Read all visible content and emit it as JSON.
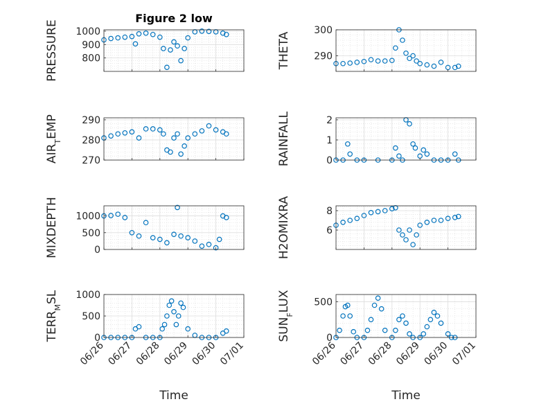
{
  "chart_data": [
    {
      "type": "scatter",
      "title": "Figure 2 low",
      "ylabel": "PRESSURE",
      "xlim": [
        "06/26",
        "07/01"
      ],
      "ylim": [
        700,
        1010
      ],
      "yticks": [
        800,
        900,
        1000
      ],
      "yticklabels": [
        "800",
        "900",
        "1000"
      ],
      "xticklabels": [],
      "grid": true,
      "color": "#0072BD",
      "series": [
        {
          "x": [
            "06/26 00:00",
            "06/26 06:00",
            "06/26 12:00",
            "06/26 18:00",
            "06/27 00:00",
            "06/27 03:00",
            "06/27 06:00",
            "06/27 12:00",
            "06/27 18:00",
            "06/28 00:00",
            "06/28 03:00",
            "06/28 06:00",
            "06/28 09:00",
            "06/28 12:00",
            "06/28 15:00",
            "06/28 18:00",
            "06/28 21:00",
            "06/29 00:00",
            "06/29 06:00",
            "06/29 12:00",
            "06/29 18:00",
            "06/30 00:00",
            "06/30 06:00",
            "06/30 09:00"
          ],
          "y": [
            935,
            945,
            950,
            955,
            960,
            905,
            980,
            985,
            975,
            955,
            870,
            730,
            860,
            920,
            890,
            780,
            870,
            950,
            995,
            1000,
            998,
            995,
            985,
            975
          ]
        }
      ]
    },
    {
      "type": "scatter",
      "ylabel": "THETA",
      "xlim": [
        "06/26",
        "07/01"
      ],
      "ylim": [
        284,
        300
      ],
      "yticks": [
        290,
        300
      ],
      "yticklabels": [
        "290",
        "300"
      ],
      "xticklabels": [],
      "grid": true,
      "color": "#0072BD",
      "series": [
        {
          "x": [
            "06/26 00:00",
            "06/26 06:00",
            "06/26 12:00",
            "06/26 18:00",
            "06/27 00:00",
            "06/27 06:00",
            "06/27 12:00",
            "06/27 18:00",
            "06/28 00:00",
            "06/28 03:00",
            "06/28 06:00",
            "06/28 09:00",
            "06/28 12:00",
            "06/28 15:00",
            "06/28 18:00",
            "06/28 21:00",
            "06/29 00:00",
            "06/29 06:00",
            "06/29 12:00",
            "06/29 18:00",
            "06/30 00:00",
            "06/30 06:00",
            "06/30 09:00"
          ],
          "y": [
            287,
            287,
            287.2,
            287.5,
            287.8,
            288.5,
            288,
            288,
            288.2,
            293,
            300,
            296,
            291,
            289,
            290,
            288,
            287,
            286.5,
            286,
            287.5,
            285.5,
            285.5,
            286
          ]
        }
      ]
    },
    {
      "type": "scatter",
      "ylabel": "AIR_TEMP",
      "xlim": [
        "06/26",
        "07/01"
      ],
      "ylim": [
        270,
        291
      ],
      "yticks": [
        270,
        280,
        290
      ],
      "yticklabels": [
        "270",
        "280",
        "290"
      ],
      "xticklabels": [],
      "grid": true,
      "color": "#0072BD",
      "series": [
        {
          "x": [
            "06/26 00:00",
            "06/26 06:00",
            "06/26 12:00",
            "06/26 18:00",
            "06/27 00:00",
            "06/27 06:00",
            "06/27 12:00",
            "06/27 18:00",
            "06/28 00:00",
            "06/28 03:00",
            "06/28 06:00",
            "06/28 09:00",
            "06/28 12:00",
            "06/28 15:00",
            "06/28 18:00",
            "06/28 21:00",
            "06/29 00:00",
            "06/29 06:00",
            "06/29 12:00",
            "06/29 18:00",
            "06/30 00:00",
            "06/30 06:00",
            "06/30 09:00"
          ],
          "y": [
            281,
            282,
            283,
            283.5,
            284,
            281,
            285.5,
            285.5,
            285,
            283,
            275,
            274,
            281,
            283,
            273,
            277,
            281,
            283,
            284.5,
            287,
            285,
            284,
            283
          ]
        }
      ]
    },
    {
      "type": "scatter",
      "ylabel": "RAINFALL",
      "xlim": [
        "06/26",
        "07/01"
      ],
      "ylim": [
        0,
        2.1
      ],
      "yticks": [
        0,
        1,
        2
      ],
      "yticklabels": [
        "0",
        "1",
        "2"
      ],
      "xticklabels": [],
      "grid": true,
      "color": "#0072BD",
      "series": [
        {
          "x": [
            "06/26 00:00",
            "06/26 06:00",
            "06/26 10:00",
            "06/26 12:00",
            "06/26 18:00",
            "06/27 00:00",
            "06/27 12:00",
            "06/28 00:00",
            "06/28 03:00",
            "06/28 06:00",
            "06/28 09:00",
            "06/28 12:00",
            "06/28 15:00",
            "06/28 18:00",
            "06/28 20:00",
            "06/29 00:00",
            "06/29 03:00",
            "06/29 06:00",
            "06/29 12:00",
            "06/29 18:00",
            "06/30 00:00",
            "06/30 06:00",
            "06/30 09:00"
          ],
          "y": [
            0,
            0,
            0.8,
            0.3,
            0,
            0,
            0,
            0,
            0.6,
            0.2,
            0,
            2,
            1.8,
            0.8,
            0.6,
            0.2,
            0.5,
            0.3,
            0,
            0,
            0,
            0.3,
            0
          ]
        }
      ]
    },
    {
      "type": "scatter",
      "ylabel": "MIXDEPTH",
      "xlim": [
        "06/26",
        "07/01"
      ],
      "ylim": [
        0,
        1300
      ],
      "yticks": [
        0,
        500,
        1000
      ],
      "yticklabels": [
        "0",
        "500",
        "1000"
      ],
      "xticklabels": [],
      "grid": true,
      "color": "#0072BD",
      "series": [
        {
          "x": [
            "06/26 00:00",
            "06/26 06:00",
            "06/26 12:00",
            "06/26 18:00",
            "06/27 00:00",
            "06/27 06:00",
            "06/27 12:00",
            "06/27 18:00",
            "06/28 00:00",
            "06/28 06:00",
            "06/28 12:00",
            "06/28 15:00",
            "06/28 18:00",
            "06/29 00:00",
            "06/29 06:00",
            "06/29 12:00",
            "06/29 18:00",
            "06/30 00:00",
            "06/30 03:00",
            "06/30 06:00",
            "06/30 09:00"
          ],
          "y": [
            1000,
            1010,
            1050,
            950,
            500,
            400,
            800,
            350,
            300,
            200,
            450,
            1250,
            400,
            350,
            250,
            100,
            150,
            50,
            300,
            1000,
            950
          ]
        }
      ]
    },
    {
      "type": "scatter",
      "ylabel": "H2OMIXRA",
      "xlim": [
        "06/26",
        "07/01"
      ],
      "ylim": [
        4,
        8.5
      ],
      "yticks": [
        6,
        8
      ],
      "yticklabels": [
        "6",
        "8"
      ],
      "xticklabels": [],
      "grid": true,
      "color": "#0072BD",
      "series": [
        {
          "x": [
            "06/26 00:00",
            "06/26 06:00",
            "06/26 12:00",
            "06/26 18:00",
            "06/27 00:00",
            "06/27 06:00",
            "06/27 12:00",
            "06/27 18:00",
            "06/28 00:00",
            "06/28 03:00",
            "06/28 06:00",
            "06/28 09:00",
            "06/28 12:00",
            "06/28 15:00",
            "06/28 18:00",
            "06/28 21:00",
            "06/29 00:00",
            "06/29 06:00",
            "06/29 12:00",
            "06/29 18:00",
            "06/30 00:00",
            "06/30 06:00",
            "06/30 09:00"
          ],
          "y": [
            6.5,
            6.8,
            7,
            7.2,
            7.5,
            7.8,
            7.9,
            8,
            8.2,
            8.3,
            6,
            5.5,
            5,
            6,
            4.5,
            5.5,
            6.5,
            6.8,
            7,
            7,
            7.2,
            7.3,
            7.4
          ]
        }
      ]
    },
    {
      "type": "scatter",
      "ylabel": "TERR_MSL",
      "xlim": [
        "06/26",
        "07/01"
      ],
      "ylim": [
        0,
        1000
      ],
      "yticks": [
        0,
        500,
        1000
      ],
      "yticklabels": [
        "0",
        "500",
        "1000"
      ],
      "xticklabels": [
        "06/26",
        "06/27",
        "06/28",
        "06/29",
        "06/30",
        "07/01"
      ],
      "xlabel": "Time",
      "grid": true,
      "color": "#0072BD",
      "series": [
        {
          "x": [
            "06/26 00:00",
            "06/26 06:00",
            "06/26 12:00",
            "06/26 18:00",
            "06/27 00:00",
            "06/27 03:00",
            "06/27 06:00",
            "06/27 12:00",
            "06/27 18:00",
            "06/28 00:00",
            "06/28 02:00",
            "06/28 04:00",
            "06/28 06:00",
            "06/28 08:00",
            "06/28 10:00",
            "06/28 12:00",
            "06/28 14:00",
            "06/28 16:00",
            "06/28 18:00",
            "06/28 20:00",
            "06/29 00:00",
            "06/29 06:00",
            "06/29 12:00",
            "06/29 18:00",
            "06/30 00:00",
            "06/30 06:00",
            "06/30 09:00"
          ],
          "y": [
            0,
            0,
            0,
            0,
            0,
            200,
            250,
            0,
            0,
            0,
            200,
            300,
            500,
            750,
            850,
            600,
            300,
            500,
            800,
            700,
            200,
            50,
            0,
            0,
            0,
            100,
            150
          ]
        }
      ]
    },
    {
      "type": "scatter",
      "ylabel": "SUN_FLUX",
      "xlim": [
        "06/26",
        "07/01"
      ],
      "ylim": [
        0,
        600
      ],
      "yticks": [
        0,
        500
      ],
      "yticklabels": [
        "0",
        "500"
      ],
      "xticklabels": [
        "06/26",
        "06/27",
        "06/28",
        "06/29",
        "06/30",
        "07/01"
      ],
      "xlabel": "Time",
      "grid": true,
      "color": "#0072BD",
      "series": [
        {
          "x": [
            "06/26 00:00",
            "06/26 03:00",
            "06/26 06:00",
            "06/26 08:00",
            "06/26 10:00",
            "06/26 12:00",
            "06/26 15:00",
            "06/26 18:00",
            "06/27 00:00",
            "06/27 03:00",
            "06/27 06:00",
            "06/27 09:00",
            "06/27 12:00",
            "06/27 15:00",
            "06/27 18:00",
            "06/28 00:00",
            "06/28 03:00",
            "06/28 06:00",
            "06/28 09:00",
            "06/28 12:00",
            "06/28 15:00",
            "06/28 18:00",
            "06/29 00:00",
            "06/29 03:00",
            "06/29 06:00",
            "06/29 09:00",
            "06/29 12:00",
            "06/29 15:00",
            "06/29 18:00",
            "06/30 00:00",
            "06/30 03:00",
            "06/30 06:00"
          ],
          "y": [
            0,
            100,
            300,
            430,
            450,
            300,
            80,
            0,
            0,
            100,
            250,
            450,
            550,
            400,
            100,
            0,
            100,
            250,
            300,
            200,
            50,
            0,
            0,
            50,
            150,
            250,
            350,
            300,
            200,
            50,
            0,
            0
          ]
        }
      ]
    }
  ]
}
